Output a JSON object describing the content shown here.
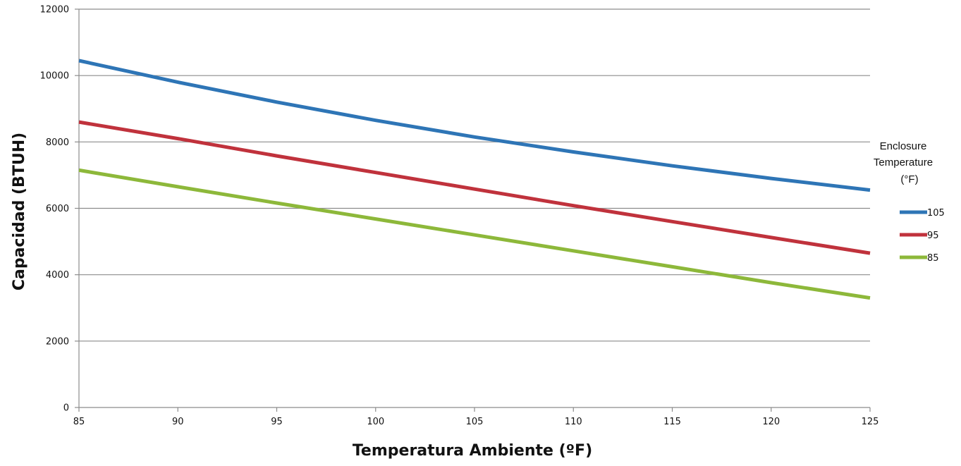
{
  "chart_data": {
    "type": "line",
    "xlabel": "Temperatura Ambiente (ºF)",
    "ylabel": "Capacidad (BTUH)",
    "xlim": [
      85,
      125
    ],
    "ylim": [
      0,
      12000
    ],
    "x_ticks": [
      85,
      90,
      95,
      100,
      105,
      110,
      115,
      120,
      125
    ],
    "y_ticks": [
      0,
      2000,
      4000,
      6000,
      8000,
      10000,
      12000
    ],
    "grid": "horizontal",
    "legend": {
      "title": [
        "Enclosure",
        "Temperature",
        "(°F)"
      ],
      "placement": "right"
    },
    "series": [
      {
        "name": "105",
        "color": "#2E75B6",
        "x": [
          85,
          90,
          95,
          100,
          105,
          110,
          115,
          120,
          125
        ],
        "y": [
          10450,
          9800,
          9200,
          8650,
          8150,
          7700,
          7280,
          6900,
          6550
        ]
      },
      {
        "name": "95",
        "color": "#C0323C",
        "x": [
          85,
          90,
          95,
          100,
          105,
          110,
          115,
          120,
          125
        ],
        "y": [
          8600,
          8100,
          7580,
          7080,
          6580,
          6080,
          5600,
          5120,
          4650
        ]
      },
      {
        "name": "85",
        "color": "#8DB83A",
        "x": [
          85,
          90,
          95,
          100,
          105,
          110,
          115,
          120,
          125
        ],
        "y": [
          7150,
          6650,
          6160,
          5680,
          5200,
          4720,
          4240,
          3760,
          3300
        ]
      }
    ]
  }
}
